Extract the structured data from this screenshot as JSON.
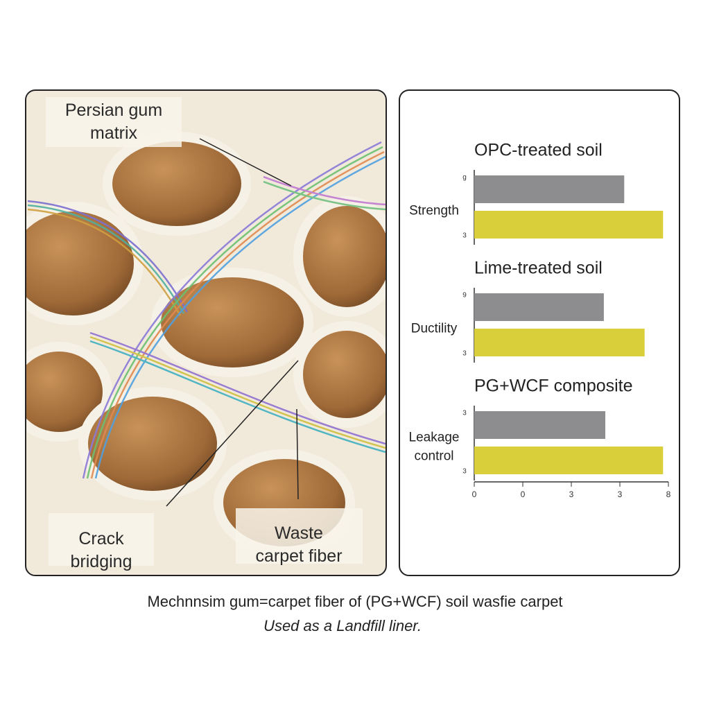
{
  "illustration": {
    "labels": [
      "Persian gum matrix",
      "Crack bridging",
      "Waste carpet fiber"
    ]
  },
  "chart_data": {
    "type": "grouped-hbar",
    "group_titles": [
      "OPC-treated soil",
      "Lime-treated soil",
      "PG+WCF composite"
    ],
    "categories": [
      "Strength",
      "Ductility",
      "Leakage control"
    ],
    "side_labels": [
      [
        "g",
        "3"
      ],
      [
        "9",
        "3"
      ],
      [
        "3",
        "3"
      ]
    ],
    "series": [
      {
        "color": "#8d8d8f",
        "values": [
          3.09,
          2.67,
          2.7
        ]
      },
      {
        "color": "#d9cf3a",
        "values": [
          3.89,
          3.51,
          3.89
        ]
      }
    ],
    "xlim": [
      0,
      4
    ],
    "xticks": [
      0,
      {
        "value": 1,
        "label": "0"
      },
      {
        "value": 2,
        "label": "3"
      },
      {
        "value": 3,
        "label": "3"
      },
      {
        "value": 4,
        "label": "8"
      }
    ]
  },
  "caption": [
    "Mechnnsim gum=carpet fiber of (PG+WCF) soil wasfie carpet",
    "Used as a Landfill liner."
  ]
}
